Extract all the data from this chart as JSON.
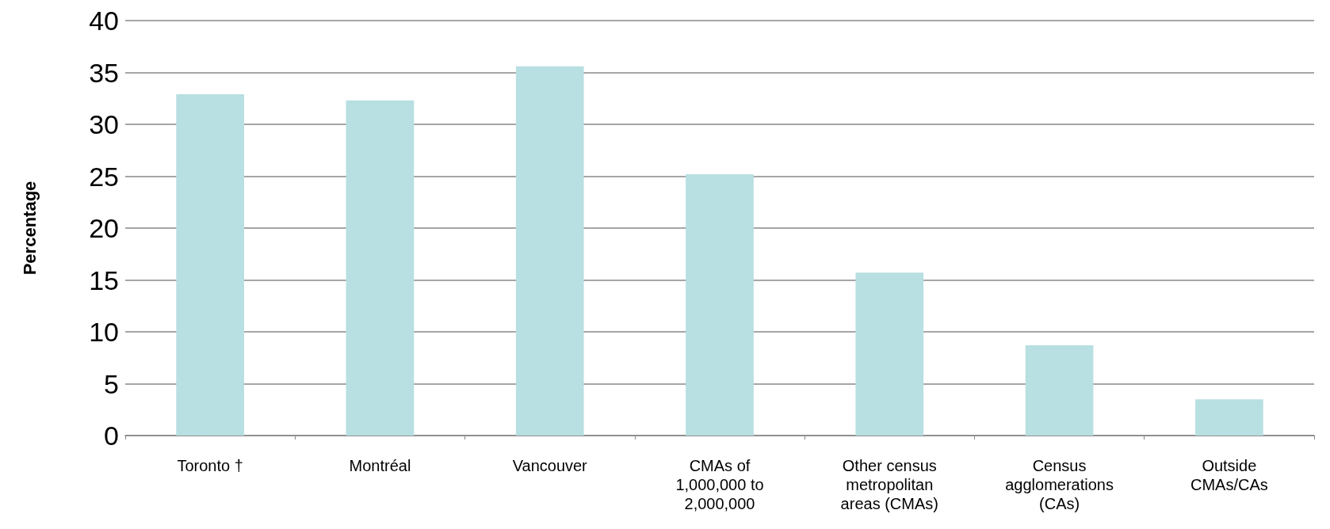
{
  "chart_data": {
    "type": "bar",
    "ylabel": "Percentage",
    "categories": [
      "Toronto †",
      "Montréal",
      "Vancouver",
      "CMAs of 1,000,000 to 2,000,000",
      "Other census metropolitan areas (CMAs)",
      "Census agglomerations (CAs)",
      "Outside CMAs/CAs"
    ],
    "values": [
      32.9,
      32.3,
      35.6,
      25.2,
      15.7,
      8.7,
      3.5
    ],
    "color": "#b8dfe1",
    "ylim": [
      0,
      40
    ],
    "yticks": [
      0,
      5,
      10,
      15,
      20,
      25,
      30,
      35,
      40
    ],
    "grid": "y"
  }
}
